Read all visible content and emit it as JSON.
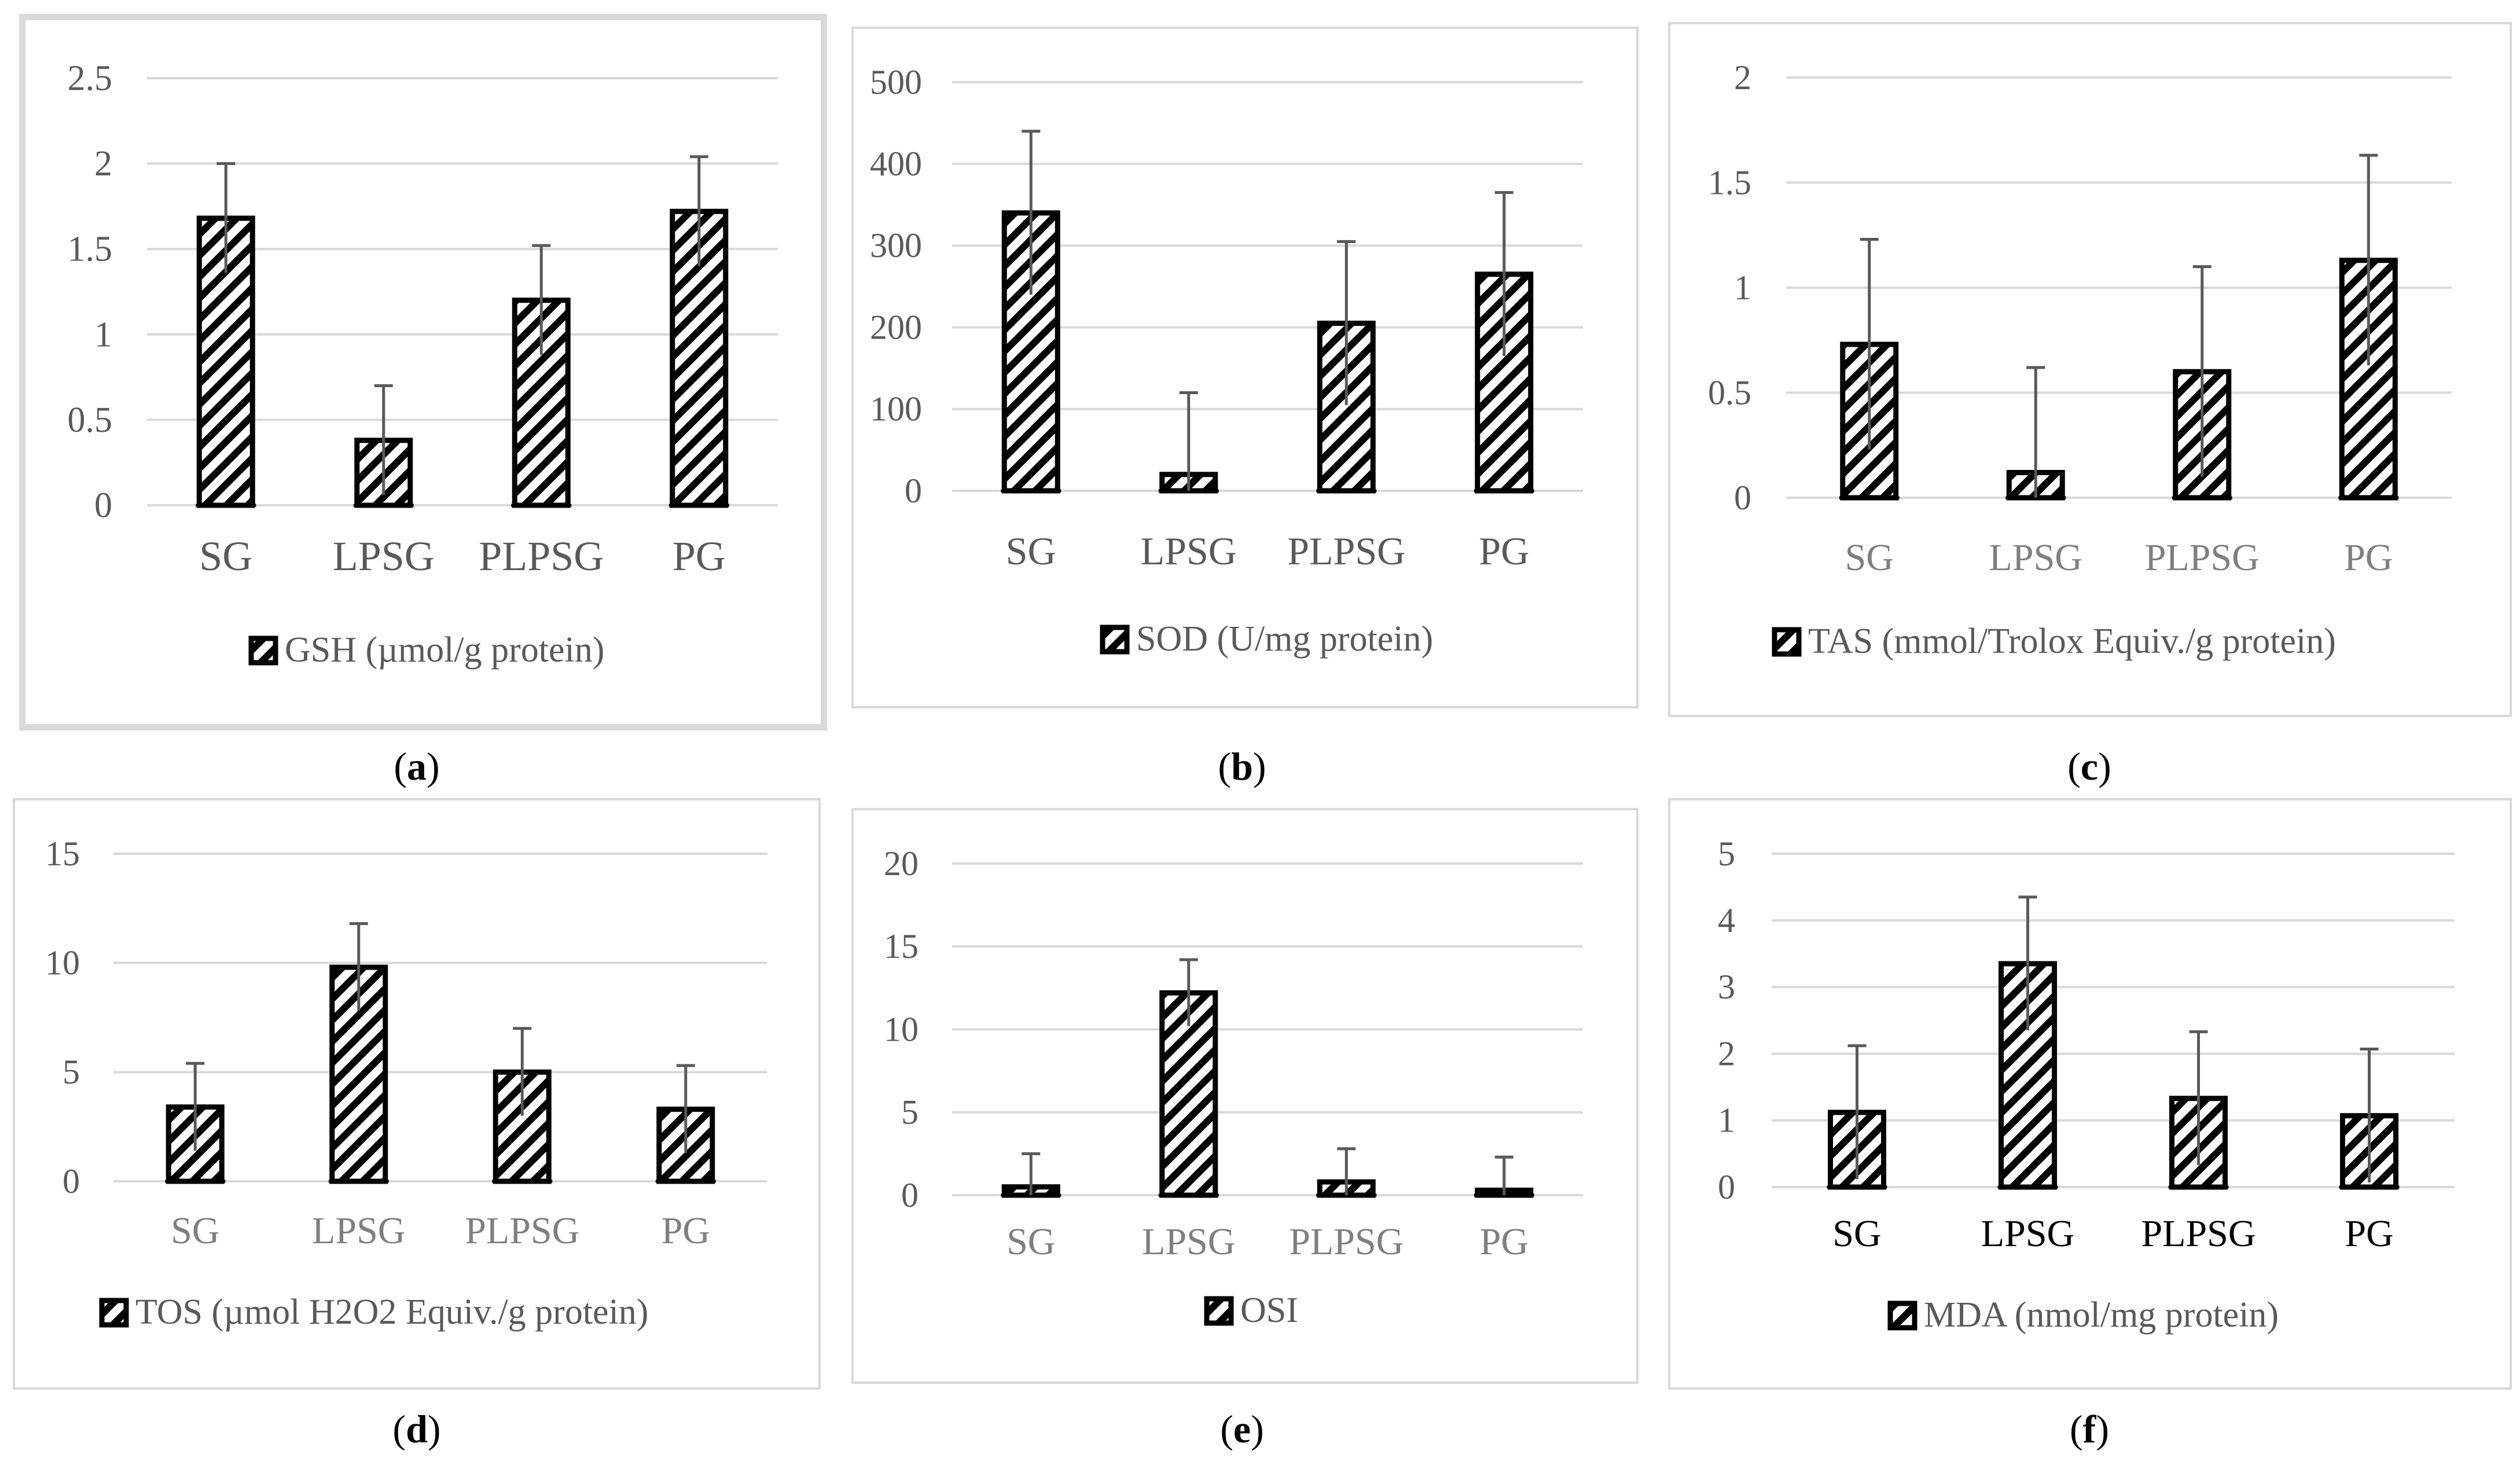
{
  "colors": {
    "grid": "#d9d9d9",
    "bar_stroke": "#000000",
    "hatch": "#000000",
    "error_bar": "#595959",
    "tick_text": "#595959",
    "panel_border": "#d9d9d9"
  },
  "chart_data": [
    {
      "panel": "a",
      "type": "bar",
      "categories": [
        "SG",
        "LPSG",
        "PLPSG",
        "PG"
      ],
      "series": [
        {
          "name": "GSH (µmol/g protein)",
          "values": [
            1.68,
            0.38,
            1.2,
            1.72
          ],
          "errors": [
            0.32,
            0.32,
            0.32,
            0.32
          ]
        }
      ],
      "ylim": [
        0,
        2.5
      ],
      "yticks": [
        "0",
        "0.5",
        "1",
        "1.5",
        "2",
        "2.5"
      ],
      "ytick_values": [
        0,
        0.5,
        1,
        1.5,
        2,
        2.5
      ],
      "legend": "top-bottom",
      "caption_letter": "a"
    },
    {
      "panel": "b",
      "type": "bar",
      "categories": [
        "SG",
        "LPSG",
        "PLPSG",
        "PG"
      ],
      "series": [
        {
          "name": "SOD (U/mg protein)",
          "values": [
            340,
            20,
            205,
            265
          ],
          "errors": [
            100,
            100,
            100,
            100
          ]
        }
      ],
      "ylim": [
        0,
        500
      ],
      "yticks": [
        "0",
        "100",
        "200",
        "300",
        "400",
        "500"
      ],
      "ytick_values": [
        0,
        100,
        200,
        300,
        400,
        500
      ],
      "caption_letter": "b"
    },
    {
      "panel": "c",
      "type": "bar",
      "categories": [
        "SG",
        "LPSG",
        "PLPSG",
        "PG"
      ],
      "series": [
        {
          "name": "TAS (mmol/Trolox Equiv./g protein)",
          "values": [
            0.73,
            0.12,
            0.6,
            1.13
          ],
          "errors": [
            0.5,
            0.5,
            0.5,
            0.5
          ]
        }
      ],
      "ylim": [
        0,
        2
      ],
      "yticks": [
        "0",
        "0.5",
        "1",
        "1.5",
        "2"
      ],
      "ytick_values": [
        0,
        0.5,
        1,
        1.5,
        2
      ],
      "caption_letter": "c"
    },
    {
      "panel": "d",
      "type": "bar",
      "categories": [
        "SG",
        "LPSG",
        "PLPSG",
        "PG"
      ],
      "series": [
        {
          "name": "TOS (µmol H2O2 Equiv./g protein)",
          "values": [
            3.4,
            9.8,
            5.0,
            3.3
          ],
          "errors": [
            2.0,
            2.0,
            2.0,
            2.0
          ]
        }
      ],
      "ylim": [
        0,
        15
      ],
      "yticks": [
        "0",
        "5",
        "10",
        "15"
      ],
      "ytick_values": [
        0,
        5,
        10,
        15
      ],
      "caption_letter": "d"
    },
    {
      "panel": "e",
      "type": "bar",
      "categories": [
        "SG",
        "LPSG",
        "PLPSG",
        "PG"
      ],
      "series": [
        {
          "name": "OSI",
          "values": [
            0.5,
            12.2,
            0.8,
            0.3
          ],
          "errors": [
            2.0,
            2.0,
            2.0,
            2.0
          ]
        }
      ],
      "ylim": [
        0,
        20
      ],
      "yticks": [
        "0",
        "5",
        "10",
        "15",
        "20"
      ],
      "ytick_values": [
        0,
        5,
        10,
        15,
        20
      ],
      "caption_letter": "e"
    },
    {
      "panel": "f",
      "type": "bar",
      "categories": [
        "SG",
        "LPSG",
        "PLPSG",
        "PG"
      ],
      "series": [
        {
          "name": "MDA (nmol/mg protein)",
          "values": [
            1.12,
            3.35,
            1.33,
            1.07
          ],
          "errors": [
            1.0,
            1.0,
            1.0,
            1.0
          ]
        }
      ],
      "ylim": [
        0,
        5
      ],
      "yticks": [
        "0",
        "1",
        "2",
        "3",
        "4",
        "5"
      ],
      "ytick_values": [
        0,
        1,
        2,
        3,
        4,
        5
      ],
      "caption_letter": "f"
    }
  ]
}
